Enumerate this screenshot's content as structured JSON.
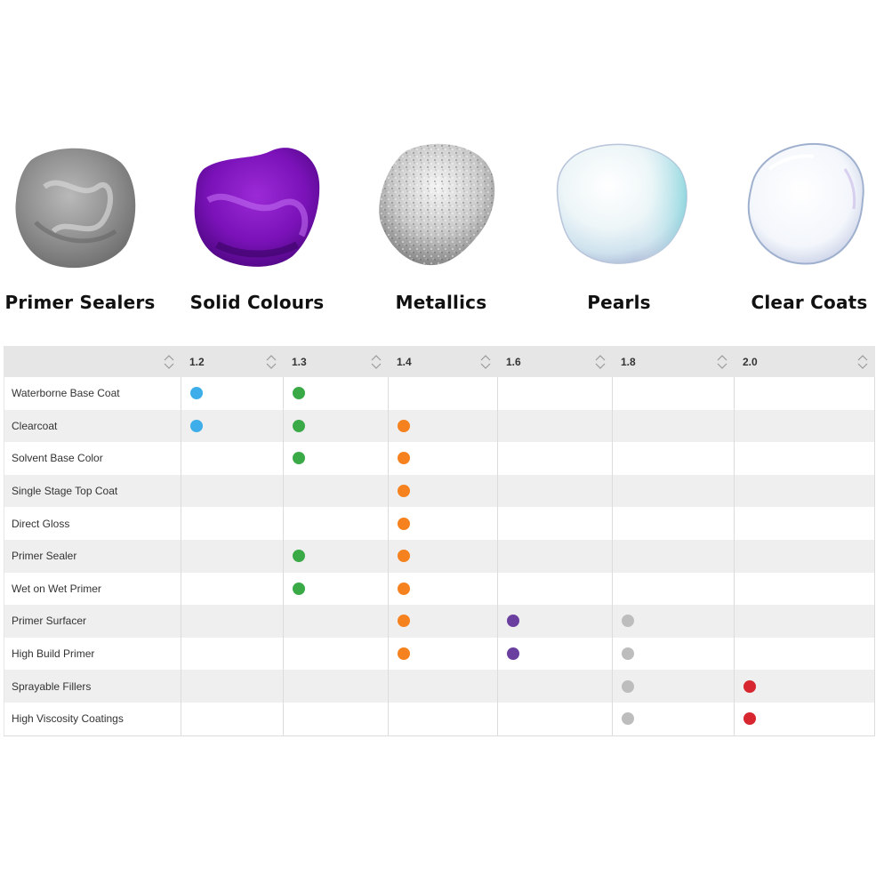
{
  "swatches": [
    {
      "label": "Primer Sealers",
      "icon": "grey-paint-blob-icon"
    },
    {
      "label": "Solid Colours",
      "icon": "purple-paint-blob-icon"
    },
    {
      "label": "Metallics",
      "icon": "silver-glitter-blob-icon"
    },
    {
      "label": "Pearls",
      "icon": "pearl-blob-icon"
    },
    {
      "label": "Clear Coats",
      "icon": "clear-bubble-icon"
    }
  ],
  "table": {
    "columns": [
      "",
      "1.2",
      "1.3",
      "1.4",
      "1.6",
      "1.8",
      "2.0"
    ],
    "rows": [
      {
        "name": "Waterborne Base Coat",
        "marks": [
          "1.2",
          "1.3"
        ]
      },
      {
        "name": "Clearcoat",
        "marks": [
          "1.2",
          "1.3",
          "1.4"
        ]
      },
      {
        "name": "Solvent Base Color",
        "marks": [
          "1.3",
          "1.4"
        ]
      },
      {
        "name": "Single Stage Top Coat",
        "marks": [
          "1.4"
        ]
      },
      {
        "name": "Direct Gloss",
        "marks": [
          "1.4"
        ]
      },
      {
        "name": "Primer Sealer",
        "marks": [
          "1.3",
          "1.4"
        ]
      },
      {
        "name": "Wet on Wet Primer",
        "marks": [
          "1.3",
          "1.4"
        ]
      },
      {
        "name": "Primer Surfacer",
        "marks": [
          "1.4",
          "1.6",
          "1.8"
        ]
      },
      {
        "name": "High Build Primer",
        "marks": [
          "1.4",
          "1.6",
          "1.8"
        ]
      },
      {
        "name": "Sprayable Fillers",
        "marks": [
          "1.8",
          "2.0"
        ]
      },
      {
        "name": "High Viscosity Coatings",
        "marks": [
          "1.8",
          "2.0"
        ]
      }
    ],
    "dot_colors": {
      "1.2": "#3daee9",
      "1.3": "#3aaa47",
      "1.4": "#f5821f",
      "1.6": "#6a3fa0",
      "1.8": "#bdbdbd",
      "2.0": "#d7262f"
    }
  }
}
